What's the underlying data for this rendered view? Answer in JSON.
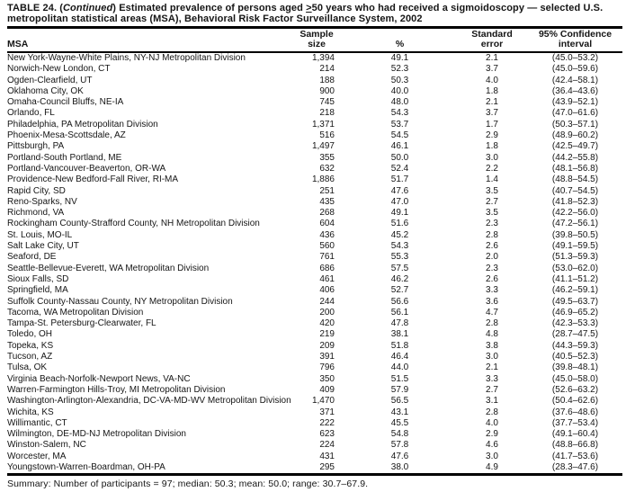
{
  "title": {
    "part1": "TABLE 24. (",
    "italic": "Continued",
    "part2": ") Estimated prevalence of persons aged ",
    "geq": ">",
    "part3": "50 years who had received a sigmoidoscopy — selected U.S. metropolitan statistical areas (MSA), Behavioral Risk Factor Surveillance System, 2002"
  },
  "table": {
    "columns": {
      "msa": "MSA",
      "sample_line1": "Sample",
      "sample_line2": "size",
      "percent": "%",
      "se_line1": "Standard",
      "se_line2": "error",
      "ci_line1": "95% Confidence",
      "ci_line2": "interval"
    },
    "rows": [
      {
        "msa": "New York-Wayne-White Plains, NY-NJ Metropolitan Division",
        "sample": "1,394",
        "percent": "49.1",
        "se": "2.1",
        "ci": "(45.0–53.2)"
      },
      {
        "msa": "Norwich-New London, CT",
        "sample": "214",
        "percent": "52.3",
        "se": "3.7",
        "ci": "(45.0–59.6)"
      },
      {
        "msa": "Ogden-Clearfield, UT",
        "sample": "188",
        "percent": "50.3",
        "se": "4.0",
        "ci": "(42.4–58.1)"
      },
      {
        "msa": "Oklahoma City, OK",
        "sample": "900",
        "percent": "40.0",
        "se": "1.8",
        "ci": "(36.4–43.6)"
      },
      {
        "msa": "Omaha-Council Bluffs, NE-IA",
        "sample": "745",
        "percent": "48.0",
        "se": "2.1",
        "ci": "(43.9–52.1)"
      },
      {
        "msa": "Orlando, FL",
        "sample": "218",
        "percent": "54.3",
        "se": "3.7",
        "ci": "(47.0–61.6)"
      },
      {
        "msa": "Philadelphia, PA Metropolitan Division",
        "sample": "1,371",
        "percent": "53.7",
        "se": "1.7",
        "ci": "(50.3–57.1)"
      },
      {
        "msa": "Phoenix-Mesa-Scottsdale, AZ",
        "sample": "516",
        "percent": "54.5",
        "se": "2.9",
        "ci": "(48.9–60.2)"
      },
      {
        "msa": "Pittsburgh, PA",
        "sample": "1,497",
        "percent": "46.1",
        "se": "1.8",
        "ci": "(42.5–49.7)"
      },
      {
        "msa": "Portland-South Portland, ME",
        "sample": "355",
        "percent": "50.0",
        "se": "3.0",
        "ci": "(44.2–55.8)"
      },
      {
        "msa": "Portland-Vancouver-Beaverton, OR-WA",
        "sample": "632",
        "percent": "52.4",
        "se": "2.2",
        "ci": "(48.1–56.8)"
      },
      {
        "msa": "Providence-New Bedford-Fall River, RI-MA",
        "sample": "1,886",
        "percent": "51.7",
        "se": "1.4",
        "ci": "(48.8–54.5)"
      },
      {
        "msa": "Rapid City, SD",
        "sample": "251",
        "percent": "47.6",
        "se": "3.5",
        "ci": "(40.7–54.5)"
      },
      {
        "msa": "Reno-Sparks, NV",
        "sample": "435",
        "percent": "47.0",
        "se": "2.7",
        "ci": "(41.8–52.3)"
      },
      {
        "msa": "Richmond, VA",
        "sample": "268",
        "percent": "49.1",
        "se": "3.5",
        "ci": "(42.2–56.0)"
      },
      {
        "msa": "Rockingham County-Strafford County, NH Metropolitan Division",
        "sample": "604",
        "percent": "51.6",
        "se": "2.3",
        "ci": "(47.2–56.1)"
      },
      {
        "msa": "St. Louis, MO-IL",
        "sample": "436",
        "percent": "45.2",
        "se": "2.8",
        "ci": "(39.8–50.5)"
      },
      {
        "msa": "Salt Lake City, UT",
        "sample": "560",
        "percent": "54.3",
        "se": "2.6",
        "ci": "(49.1–59.5)"
      },
      {
        "msa": "Seaford, DE",
        "sample": "761",
        "percent": "55.3",
        "se": "2.0",
        "ci": "(51.3–59.3)"
      },
      {
        "msa": "Seattle-Bellevue-Everett, WA Metropolitan Division",
        "sample": "686",
        "percent": "57.5",
        "se": "2.3",
        "ci": "(53.0–62.0)"
      },
      {
        "msa": "Sioux Falls, SD",
        "sample": "461",
        "percent": "46.2",
        "se": "2.6",
        "ci": "(41.1–51.2)"
      },
      {
        "msa": "Springfield, MA",
        "sample": "406",
        "percent": "52.7",
        "se": "3.3",
        "ci": "(46.2–59.1)"
      },
      {
        "msa": "Suffolk County-Nassau County, NY Metropolitan Division",
        "sample": "244",
        "percent": "56.6",
        "se": "3.6",
        "ci": "(49.5–63.7)"
      },
      {
        "msa": "Tacoma, WA Metropolitan Division",
        "sample": "200",
        "percent": "56.1",
        "se": "4.7",
        "ci": "(46.9–65.2)"
      },
      {
        "msa": "Tampa-St. Petersburg-Clearwater, FL",
        "sample": "420",
        "percent": "47.8",
        "se": "2.8",
        "ci": "(42.3–53.3)"
      },
      {
        "msa": "Toledo, OH",
        "sample": "219",
        "percent": "38.1",
        "se": "4.8",
        "ci": "(28.7–47.5)"
      },
      {
        "msa": "Topeka, KS",
        "sample": "209",
        "percent": "51.8",
        "se": "3.8",
        "ci": "(44.3–59.3)"
      },
      {
        "msa": "Tucson, AZ",
        "sample": "391",
        "percent": "46.4",
        "se": "3.0",
        "ci": "(40.5–52.3)"
      },
      {
        "msa": "Tulsa, OK",
        "sample": "796",
        "percent": "44.0",
        "se": "2.1",
        "ci": "(39.8–48.1)"
      },
      {
        "msa": "Virginia Beach-Norfolk-Newport News, VA-NC",
        "sample": "350",
        "percent": "51.5",
        "se": "3.3",
        "ci": "(45.0–58.0)"
      },
      {
        "msa": "Warren-Farmington Hills-Troy, MI Metropolitan Division",
        "sample": "409",
        "percent": "57.9",
        "se": "2.7",
        "ci": "(52.6–63.2)"
      },
      {
        "msa": "Washington-Arlington-Alexandria, DC-VA-MD-WV Metropolitan Division",
        "sample": "1,470",
        "percent": "56.5",
        "se": "3.1",
        "ci": "(50.4–62.6)"
      },
      {
        "msa": "Wichita, KS",
        "sample": "371",
        "percent": "43.1",
        "se": "2.8",
        "ci": "(37.6–48.6)"
      },
      {
        "msa": "Willimantic, CT",
        "sample": "222",
        "percent": "45.5",
        "se": "4.0",
        "ci": "(37.7–53.4)"
      },
      {
        "msa": "Wilmington, DE-MD-NJ Metropolitan Division",
        "sample": "623",
        "percent": "54.8",
        "se": "2.9",
        "ci": "(49.1–60.4)"
      },
      {
        "msa": "Winston-Salem, NC",
        "sample": "224",
        "percent": "57.8",
        "se": "4.6",
        "ci": "(48.8–66.8)"
      },
      {
        "msa": "Worcester, MA",
        "sample": "431",
        "percent": "47.6",
        "se": "3.0",
        "ci": "(41.7–53.6)"
      },
      {
        "msa": "Youngstown-Warren-Boardman, OH-PA",
        "sample": "295",
        "percent": "38.0",
        "se": "4.9",
        "ci": "(28.3–47.6)"
      }
    ]
  },
  "summary": "Summary: Number of participants = 97; median: 50.3; mean: 50.0; range: 30.7–67.9."
}
